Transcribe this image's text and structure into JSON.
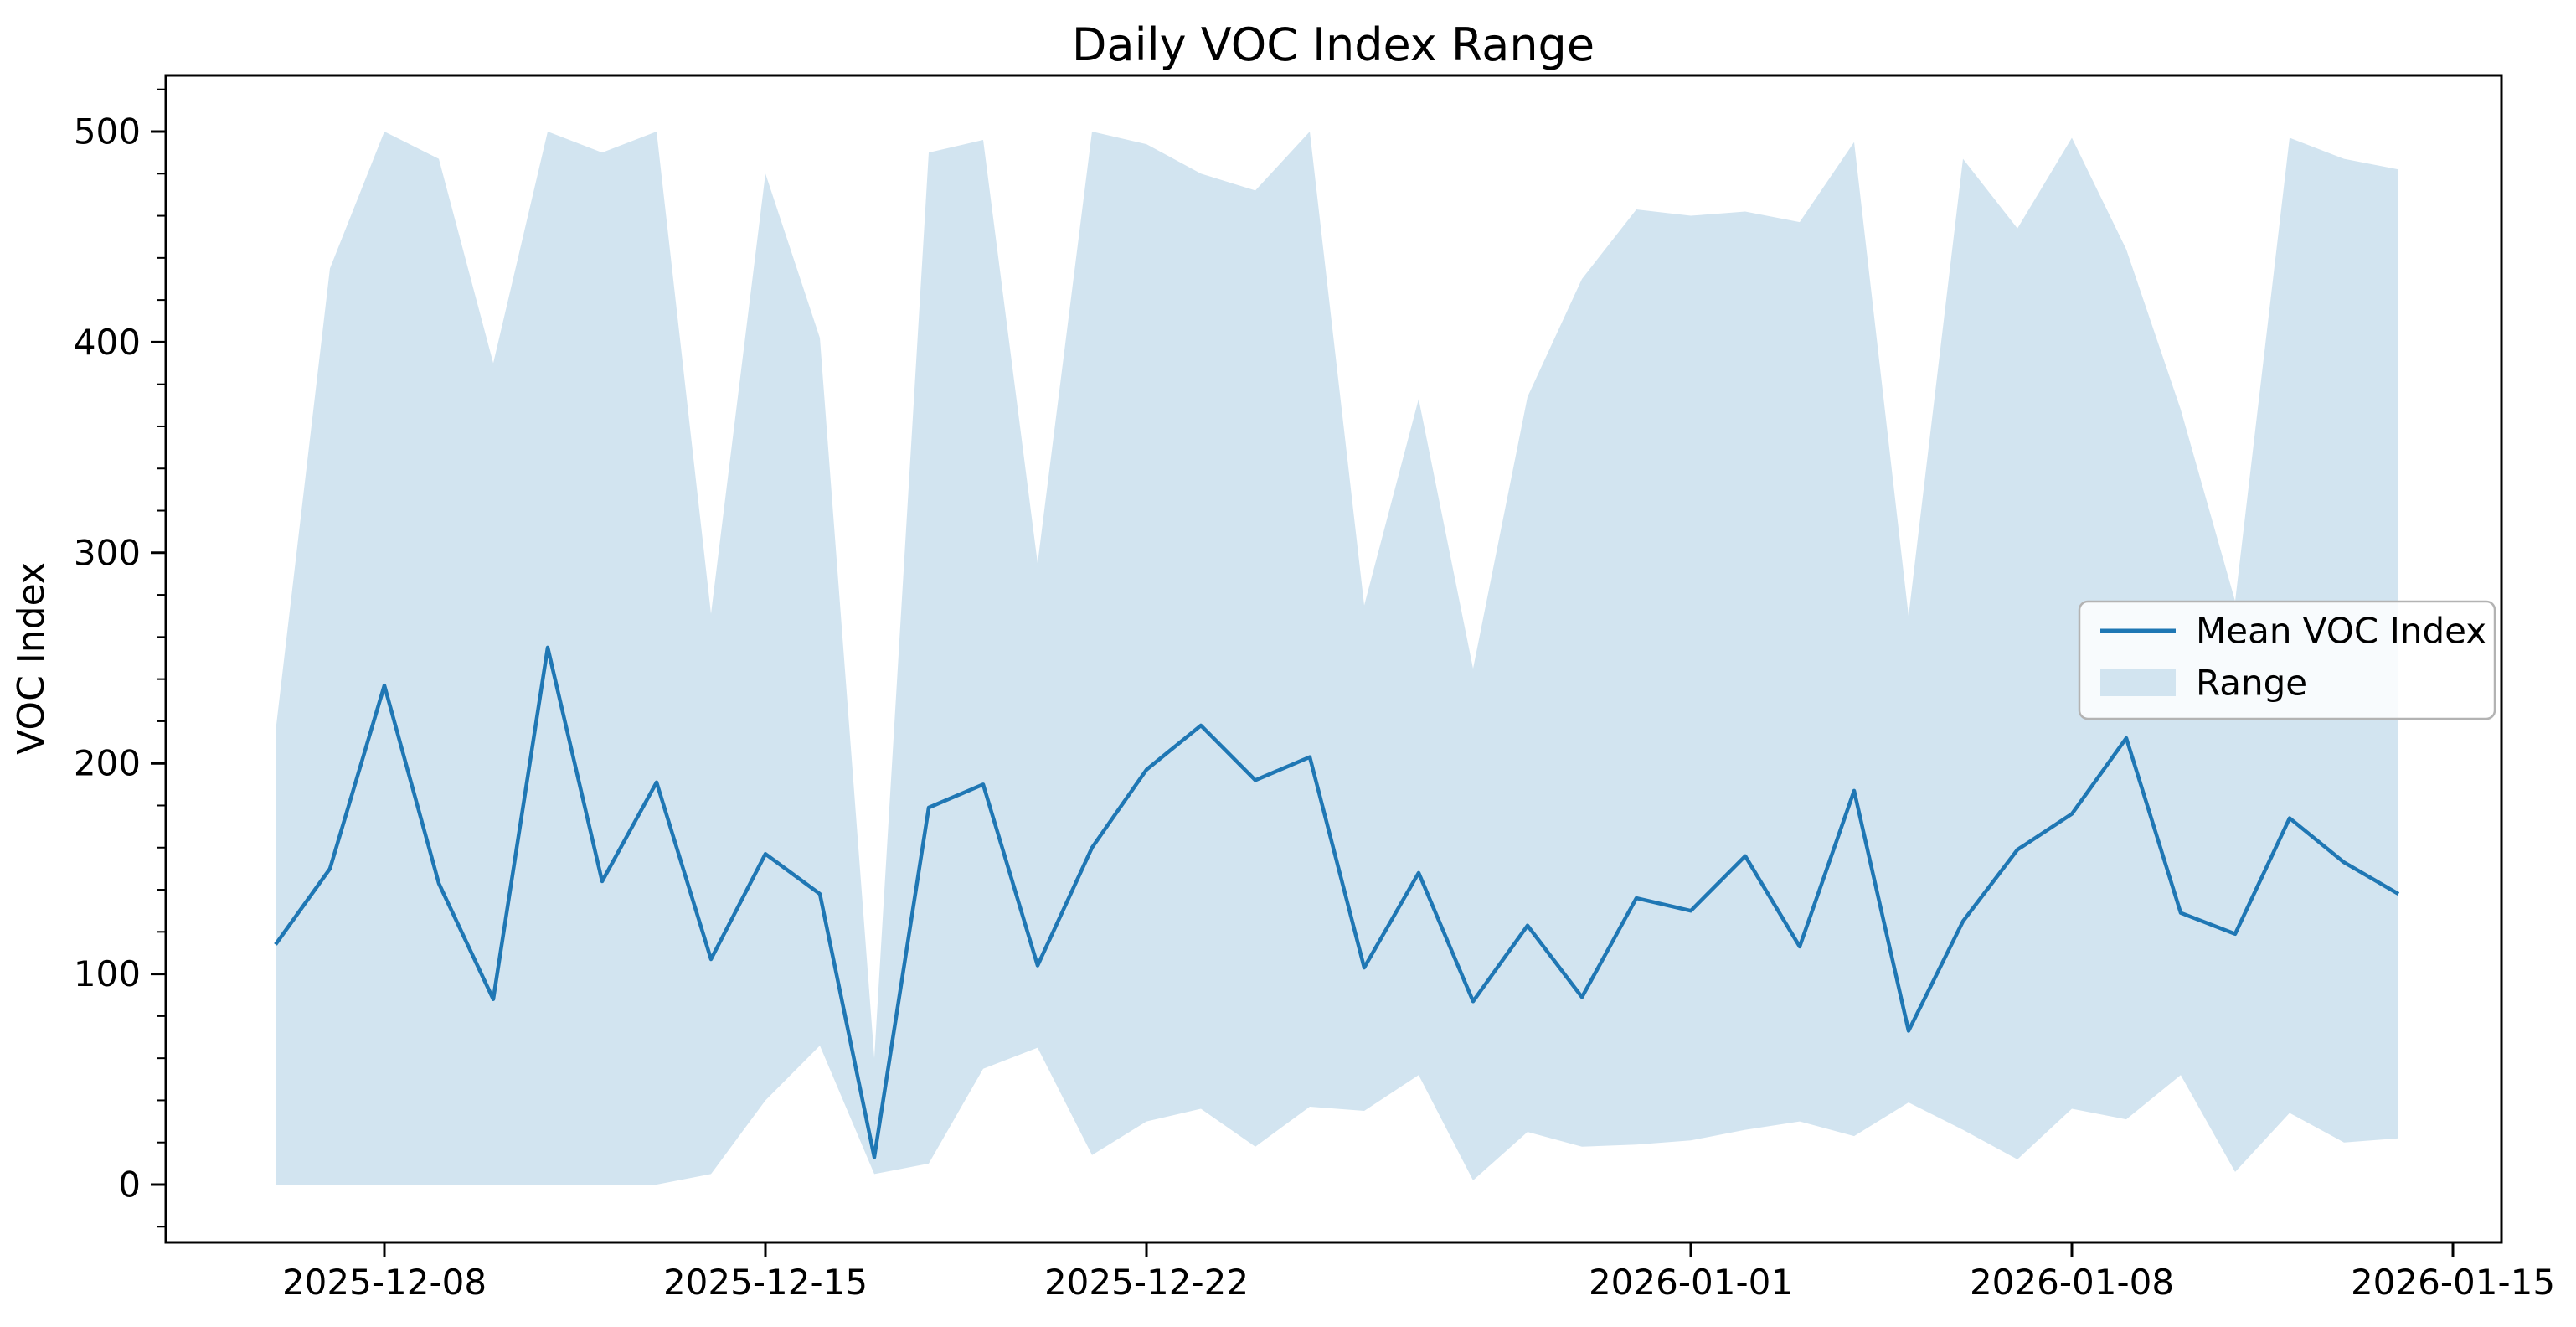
{
  "chart_data": {
    "type": "line",
    "title": "Daily VOC Index Range",
    "xlabel": "",
    "ylabel": "VOC Index",
    "grid": false,
    "legend_position": "center-right",
    "ylim": [
      -27,
      527
    ],
    "yticks": [
      0,
      100,
      200,
      300,
      400,
      500
    ],
    "y_minor_step": 20,
    "xticks": [
      "2025-12-08",
      "2025-12-15",
      "2025-12-22",
      "2026-01-01",
      "2026-01-08",
      "2026-01-15"
    ],
    "x": [
      "2025-12-06",
      "2025-12-07",
      "2025-12-08",
      "2025-12-09",
      "2025-12-10",
      "2025-12-11",
      "2025-12-12",
      "2025-12-13",
      "2025-12-14",
      "2025-12-15",
      "2025-12-16",
      "2025-12-17",
      "2025-12-18",
      "2025-12-19",
      "2025-12-20",
      "2025-12-21",
      "2025-12-22",
      "2025-12-23",
      "2025-12-24",
      "2025-12-25",
      "2025-12-26",
      "2025-12-27",
      "2025-12-28",
      "2025-12-29",
      "2025-12-30",
      "2025-12-31",
      "2026-01-01",
      "2026-01-02",
      "2026-01-03",
      "2026-01-04",
      "2026-01-05",
      "2026-01-06",
      "2026-01-07",
      "2026-01-08",
      "2026-01-09",
      "2026-01-10",
      "2026-01-11",
      "2026-01-12",
      "2026-01-13",
      "2026-01-14"
    ],
    "series": [
      {
        "name": "Mean VOC Index",
        "values": [
          114,
          150,
          237,
          143,
          88,
          255,
          144,
          191,
          107,
          157,
          138,
          13,
          179,
          190,
          104,
          160,
          197,
          218,
          192,
          203,
          103,
          148,
          87,
          123,
          89,
          136,
          130,
          156,
          113,
          187,
          73,
          125,
          159,
          176,
          212,
          129,
          119,
          174,
          153,
          138
        ]
      }
    ],
    "band": {
      "name": "Range",
      "max": [
        215,
        435,
        500,
        487,
        390,
        500,
        490,
        500,
        271,
        480,
        402,
        60,
        490,
        496,
        295,
        500,
        494,
        480,
        472,
        500,
        275,
        373,
        245,
        374,
        430,
        463,
        460,
        462,
        457,
        495,
        270,
        487,
        454,
        497,
        444,
        368,
        277,
        497,
        487,
        482
      ],
      "min": [
        0,
        0,
        0,
        0,
        0,
        0,
        0,
        0,
        5,
        40,
        66,
        5,
        10,
        55,
        65,
        14,
        30,
        36,
        18,
        37,
        35,
        52,
        2,
        25,
        18,
        19,
        21,
        26,
        30,
        23,
        39,
        26,
        12,
        36,
        31,
        52,
        6,
        34,
        20,
        22
      ]
    },
    "colors": {
      "line": "#1f77b4",
      "band": "#d2e4f0",
      "axis": "#000000",
      "legend_border": "#b3b3b3"
    }
  },
  "legend": {
    "items": [
      {
        "label": "Mean VOC Index",
        "type": "line"
      },
      {
        "label": "Range",
        "type": "patch"
      }
    ]
  }
}
